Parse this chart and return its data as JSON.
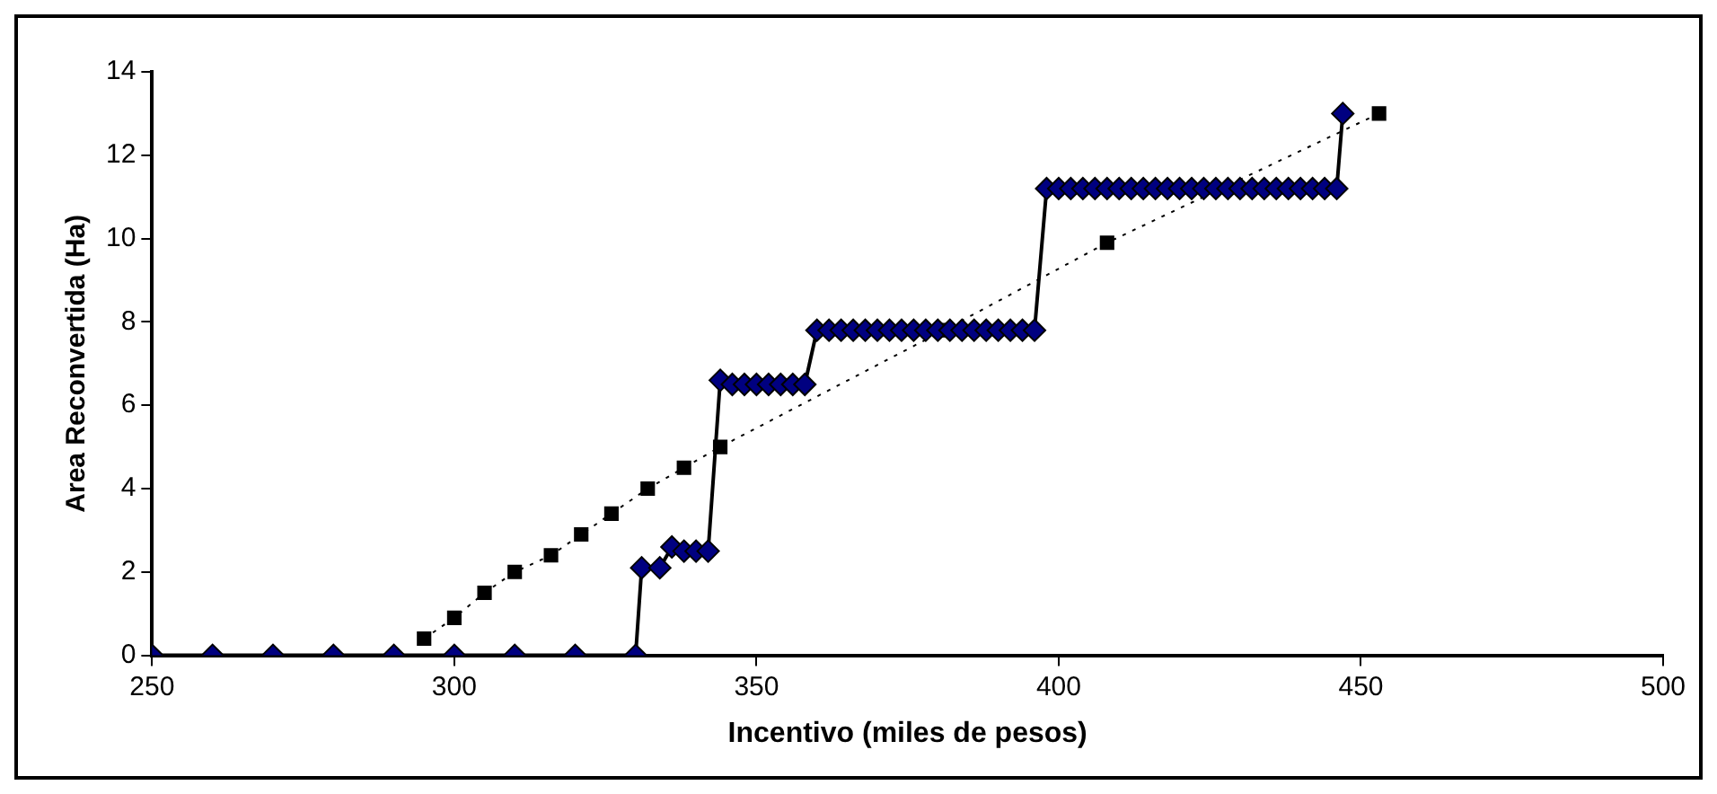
{
  "chart_data": {
    "type": "line",
    "xlabel": "Incentivo (miles de pesos)",
    "ylabel": "Area Reconvertida (Ha)",
    "xlim": [
      250,
      500
    ],
    "xticks": [
      250,
      300,
      350,
      400,
      450,
      500
    ],
    "ylim": [
      0,
      14
    ],
    "yticks": [
      0,
      2,
      4,
      6,
      8,
      10,
      12,
      14
    ],
    "grid": false,
    "legend": false,
    "series": [
      {
        "marker": "diamond",
        "line_style": "solid",
        "color": "#000080",
        "x": [
          250,
          260,
          270,
          280,
          290,
          300,
          310,
          320,
          330,
          331,
          334,
          336,
          338,
          340,
          342,
          344,
          346,
          348,
          350,
          352,
          354,
          356,
          358,
          360,
          362,
          364,
          366,
          368,
          370,
          372,
          374,
          376,
          378,
          380,
          382,
          384,
          386,
          388,
          390,
          392,
          394,
          396,
          398,
          400,
          402,
          404,
          406,
          408,
          410,
          412,
          414,
          416,
          418,
          420,
          422,
          424,
          426,
          428,
          430,
          432,
          434,
          436,
          438,
          440,
          442,
          444,
          446,
          447
        ],
        "values": [
          0,
          0,
          0,
          0,
          0,
          0,
          0,
          0,
          0,
          2.1,
          2.1,
          2.6,
          2.5,
          2.5,
          2.5,
          6.6,
          6.5,
          6.5,
          6.5,
          6.5,
          6.5,
          6.5,
          6.5,
          7.8,
          7.8,
          7.8,
          7.8,
          7.8,
          7.8,
          7.8,
          7.8,
          7.8,
          7.8,
          7.8,
          7.8,
          7.8,
          7.8,
          7.8,
          7.8,
          7.8,
          7.8,
          7.8,
          11.2,
          11.2,
          11.2,
          11.2,
          11.2,
          11.2,
          11.2,
          11.2,
          11.2,
          11.2,
          11.2,
          11.2,
          11.2,
          11.2,
          11.2,
          11.2,
          11.2,
          11.2,
          11.2,
          11.2,
          11.2,
          11.2,
          11.2,
          11.2,
          11.2,
          13
        ]
      },
      {
        "marker": "square",
        "line_style": "dotted",
        "color": "#000000",
        "x": [
          295,
          300,
          305,
          310,
          316,
          321,
          326,
          332,
          338,
          344,
          381,
          408,
          453
        ],
        "values": [
          0.4,
          0.9,
          1.5,
          2,
          2.4,
          2.9,
          3.4,
          4,
          4.5,
          5,
          7.8,
          9.9,
          13
        ]
      }
    ]
  }
}
